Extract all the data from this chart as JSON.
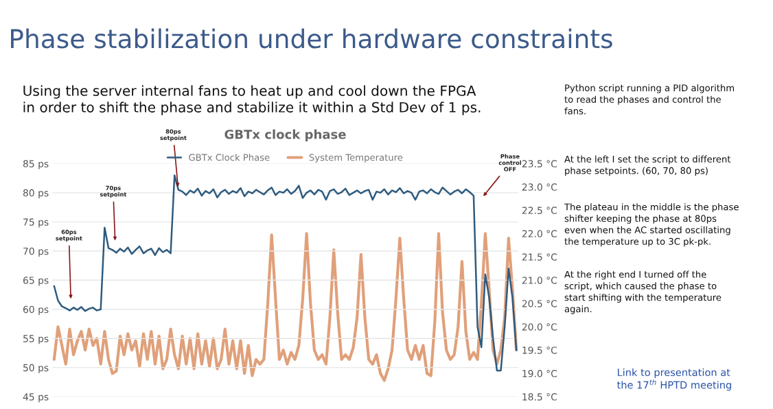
{
  "chart_data": {
    "type": "line",
    "title": "GBTx clock phase",
    "categories": [
      null,
      null,
      null,
      null,
      null,
      null,
      null,
      null,
      null,
      null,
      null,
      null,
      null,
      null,
      null,
      null,
      null,
      null,
      null,
      null,
      null,
      null,
      null,
      null,
      null,
      null,
      null,
      null,
      null,
      null,
      null,
      null,
      null,
      null,
      null,
      null,
      null,
      null,
      null,
      null,
      null,
      null,
      null,
      null,
      null,
      null,
      null,
      null,
      null,
      null,
      null,
      null,
      null,
      null,
      null,
      null,
      null,
      null,
      null,
      null,
      null,
      null,
      null,
      null,
      null,
      null,
      null,
      null,
      null,
      null,
      null,
      null,
      null,
      null,
      null,
      null,
      null,
      null,
      null,
      null,
      null,
      null,
      null,
      null,
      null,
      null,
      null,
      null,
      null,
      null,
      null,
      null,
      null,
      null,
      null,
      null,
      null,
      null,
      null,
      null,
      null,
      null,
      null,
      null,
      null,
      null,
      null,
      null,
      null,
      null,
      null,
      null,
      null,
      null,
      null,
      null,
      null,
      null,
      null,
      null
    ],
    "series": [
      {
        "name": "GBTx Clock Phase",
        "color": "#2e5b7f",
        "values": [
          64,
          61.5,
          60.5,
          60.2,
          59.8,
          60.3,
          59.9,
          60.4,
          59.7,
          60.1,
          60.3,
          59.8,
          60.0,
          74,
          70.5,
          70.2,
          69.7,
          70.4,
          69.9,
          70.6,
          69.5,
          70.2,
          70.8,
          69.6,
          70.1,
          70.4,
          69.3,
          70.5,
          69.8,
          70.2,
          69.6,
          83,
          80.5,
          80.2,
          79.6,
          80.4,
          80.0,
          80.7,
          79.5,
          80.3,
          79.9,
          80.6,
          79.2,
          80.1,
          80.5,
          79.8,
          80.3,
          80.0,
          80.8,
          79.4,
          80.2,
          79.9,
          80.5,
          80.1,
          79.7,
          80.4,
          80.9,
          79.6,
          80.2,
          80.0,
          80.6,
          79.8,
          80.3,
          81.2,
          79.1,
          80.0,
          80.4,
          79.7,
          80.5,
          80.2,
          78.8,
          80.3,
          80.6,
          79.8,
          80.1,
          80.7,
          79.6,
          80.0,
          80.4,
          79.9,
          80.3,
          80.5,
          78.8,
          80.2,
          80.0,
          80.6,
          79.7,
          80.4,
          80.1,
          80.8,
          79.9,
          80.3,
          80.0,
          78.8,
          80.2,
          80.4,
          79.9,
          80.6,
          80.1,
          79.8,
          80.9,
          80.3,
          79.7,
          80.2,
          80.5,
          79.9,
          80.6,
          80.1,
          79.5,
          57,
          53.5,
          66,
          62,
          55,
          49.5,
          49.5,
          57,
          67,
          62,
          53
        ]
      },
      {
        "name": "System Temperature",
        "color": "#e0a07a",
        "axis": "y2",
        "values": [
          19.3,
          20.0,
          19.6,
          19.2,
          19.95,
          19.4,
          19.7,
          19.9,
          19.5,
          19.95,
          19.6,
          19.75,
          19.2,
          19.9,
          19.3,
          19.0,
          19.05,
          19.8,
          19.4,
          19.85,
          19.5,
          19.7,
          19.15,
          19.85,
          19.3,
          19.9,
          19.2,
          19.8,
          19.1,
          19.3,
          19.95,
          19.4,
          19.1,
          19.8,
          19.2,
          19.75,
          19.1,
          19.85,
          19.2,
          19.7,
          19.15,
          19.75,
          19.1,
          19.3,
          19.95,
          19.2,
          19.7,
          19.1,
          19.7,
          19.0,
          19.6,
          18.95,
          19.3,
          19.2,
          19.3,
          20.5,
          21.97,
          20.6,
          19.3,
          19.5,
          19.2,
          19.45,
          19.3,
          19.6,
          20.6,
          22.0,
          20.5,
          19.5,
          19.3,
          19.4,
          19.2,
          20.2,
          21.65,
          20.3,
          19.3,
          19.4,
          19.3,
          19.55,
          20.2,
          21.55,
          20.2,
          19.3,
          19.2,
          19.4,
          19.0,
          18.85,
          19.1,
          19.5,
          20.6,
          21.9,
          20.6,
          19.5,
          19.3,
          19.6,
          19.3,
          19.6,
          19.0,
          18.95,
          20.1,
          22.0,
          20.3,
          19.5,
          19.3,
          19.4,
          20.0,
          21.4,
          19.9,
          19.3,
          19.45,
          19.3,
          20.5,
          22.0,
          20.8,
          19.5,
          19.2,
          19.5,
          20.2,
          21.9,
          20.8,
          19.5
        ]
      }
    ],
    "ylim": [
      45,
      85
    ],
    "yticks": [
      {
        "value": 45,
        "label": "45 ps"
      },
      {
        "value": 50,
        "label": "50 ps"
      },
      {
        "value": 55,
        "label": "55 ps"
      },
      {
        "value": 60,
        "label": "60 ps"
      },
      {
        "value": 65,
        "label": "65 ps"
      },
      {
        "value": 70,
        "label": "70 ps"
      },
      {
        "value": 75,
        "label": "75 ps"
      },
      {
        "value": 80,
        "label": "80 ps"
      },
      {
        "value": 85,
        "label": "85 ps"
      }
    ],
    "y2lim": [
      18.5,
      23.5
    ],
    "y2ticks": [
      {
        "value": 18.5,
        "label": "18.5 °C"
      },
      {
        "value": 19.0,
        "label": "19.0 °C"
      },
      {
        "value": 19.5,
        "label": "19.5 °C"
      },
      {
        "value": 20.0,
        "label": "20.0 °C"
      },
      {
        "value": 20.5,
        "label": "20.5 °C"
      },
      {
        "value": 21.0,
        "label": "21.0 °C"
      },
      {
        "value": 21.5,
        "label": "21.5 °C"
      },
      {
        "value": 22.0,
        "label": "22.0 °C"
      },
      {
        "value": 22.5,
        "label": "22.5 °C"
      },
      {
        "value": 23.0,
        "label": "23.0 °C"
      },
      {
        "value": 23.5,
        "label": "23.5 °C"
      }
    ],
    "grid": "y",
    "legend": "top",
    "tick_labels": "y",
    "annotations": [
      "Phase stabilization under hardware constraints",
      "Using the server internal fans to heat up and cool down the FPGA\nin order to shift the phase and stabilize it within a Std Dev of 1 ps.",
      "Python script running a PID algorithm\nto read the phases and control the\nfans.",
      "At the left I set the script to different\nphase setpoints. (60, 70, 80 ps)",
      "The plateau in the middle is the phase\nshifter keeping the phase at 80ps\neven when the AC started oscillating\nthe temperature up to 3C pk-pk.",
      "At the right end I turned off the\nscript, which caused the phase to\nstart shifting with the temperature\nagain.",
      "Link to presentation at\nthe 17$^{th}$ HPTD meeting",
      "60ps\nsetpoint",
      "70ps\nsetpoint",
      "80ps\nsetpoint",
      "Phase\ncontrol\nOFF"
    ]
  }
}
